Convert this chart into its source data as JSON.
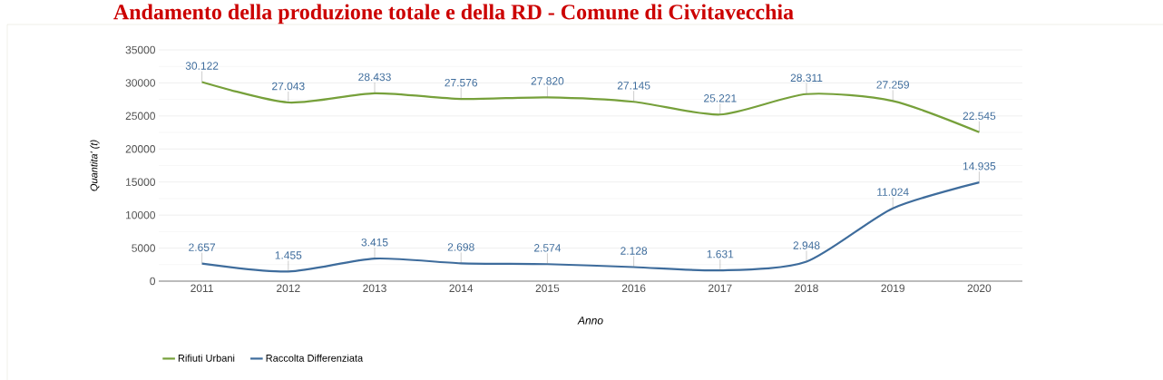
{
  "chart_data": {
    "type": "line",
    "title": "Andamento della produzione totale e della RD - Comune di Civitavecchia",
    "xlabel": "Anno",
    "ylabel": "Quantita' (t)",
    "categories": [
      "2011",
      "2012",
      "2013",
      "2014",
      "2015",
      "2016",
      "2017",
      "2018",
      "2019",
      "2020"
    ],
    "series": [
      {
        "name": "Rifiuti Urbani",
        "color": "#76a03a",
        "values": [
          30122,
          27043,
          28433,
          27576,
          27820,
          27145,
          25221,
          28311,
          27259,
          22545
        ],
        "value_labels": [
          "30.122",
          "27.043",
          "28.433",
          "27.576",
          "27.820",
          "27.145",
          "25.221",
          "28.311",
          "27.259",
          "22.545"
        ]
      },
      {
        "name": "Raccolta Differenziata",
        "color": "#3e6c9c",
        "values": [
          2657,
          1455,
          3415,
          2698,
          2574,
          2128,
          1631,
          2948,
          11024,
          14935
        ],
        "value_labels": [
          "2.657",
          "1.455",
          "3.415",
          "2.698",
          "2.574",
          "2.128",
          "1.631",
          "2.948",
          "11.024",
          "14.935"
        ]
      }
    ],
    "ylim": [
      0,
      35000
    ],
    "yticks": [
      0,
      5000,
      10000,
      15000,
      20000,
      25000,
      30000,
      35000
    ],
    "grid": "y",
    "legend": "bottom left",
    "marker": "none",
    "line_style": "solid"
  }
}
